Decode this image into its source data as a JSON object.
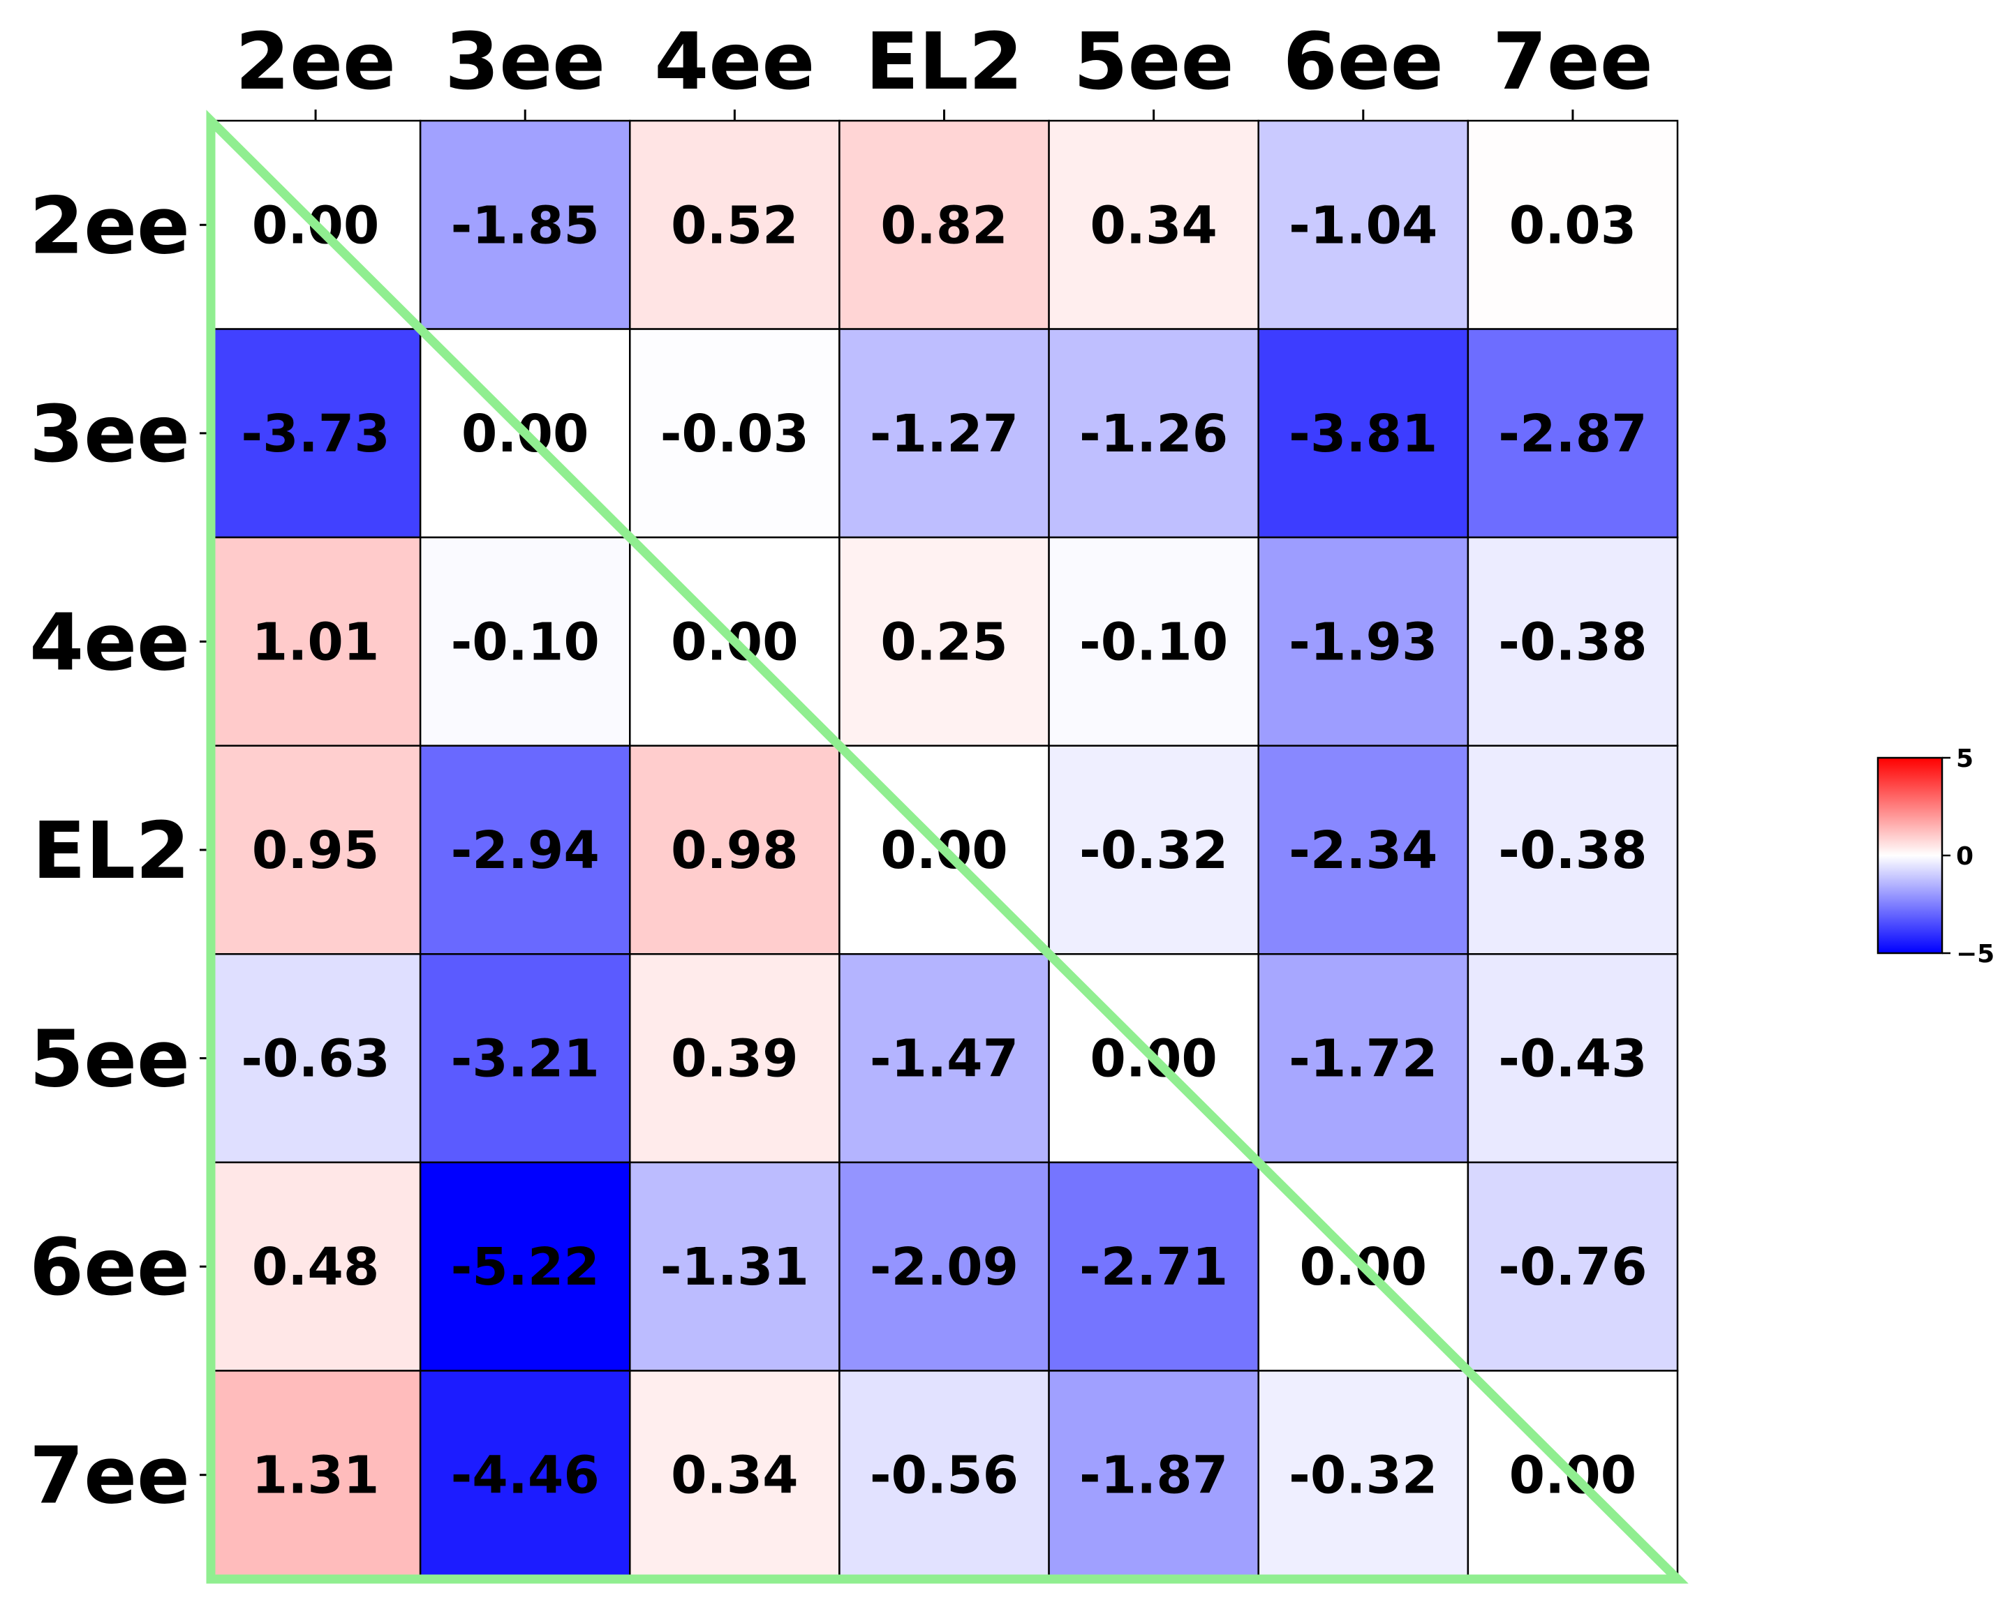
{
  "chart_data": {
    "type": "heatmap",
    "x_categories": [
      "2ee",
      "3ee",
      "4ee",
      "EL2",
      "5ee",
      "6ee",
      "7ee"
    ],
    "y_categories": [
      "2ee",
      "3ee",
      "4ee",
      "EL2",
      "5ee",
      "6ee",
      "7ee"
    ],
    "values": [
      [
        "0.00",
        "-1.85",
        "0.52",
        "0.82",
        "0.34",
        "-1.04",
        "0.03"
      ],
      [
        "-3.73",
        "0.00",
        "-0.03",
        "-1.27",
        "-1.26",
        "-3.81",
        "-2.87"
      ],
      [
        "1.01",
        "-0.10",
        "0.00",
        "0.25",
        "-0.10",
        "-1.93",
        "-0.38"
      ],
      [
        "0.95",
        "-2.94",
        "0.98",
        "0.00",
        "-0.32",
        "-2.34",
        "-0.38"
      ],
      [
        "-0.63",
        "-3.21",
        "0.39",
        "-1.47",
        "0.00",
        "-1.72",
        "-0.43"
      ],
      [
        "0.48",
        "-5.22",
        "-1.31",
        "-2.09",
        "-2.71",
        "0.00",
        "-0.76"
      ],
      [
        "1.31",
        "-4.46",
        "0.34",
        "-0.56",
        "-1.87",
        "-0.32",
        "0.00"
      ]
    ],
    "colormap": "bwr",
    "vmin": -5,
    "vmax": 5,
    "colorbar_ticks": [
      "5",
      "0",
      "−5"
    ],
    "title": "",
    "xlabel": "",
    "ylabel": "",
    "x_axis_position": "top",
    "triangle_outline_color": "#90ee90",
    "colors": {
      "min": "#0000ff",
      "mid": "#ffffff",
      "max": "#ff0000",
      "grid": "#000000"
    }
  }
}
